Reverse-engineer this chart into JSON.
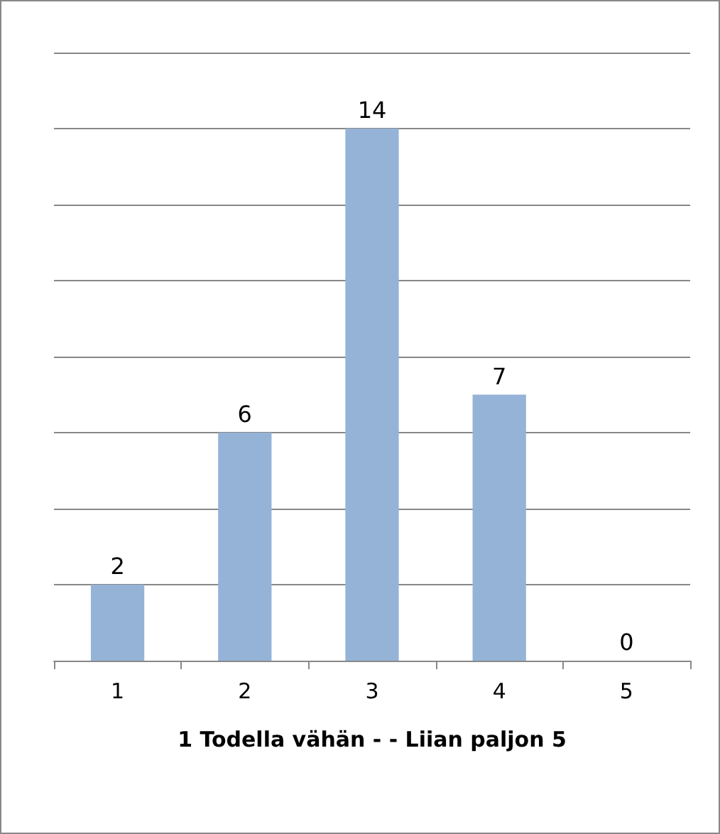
{
  "chart_data": {
    "type": "bar",
    "xlabel": "1 Todella vähän - - Liian paljon 5",
    "categories": [
      "1",
      "2",
      "3",
      "4",
      "5"
    ],
    "values": [
      2,
      6,
      14,
      7,
      0
    ],
    "color": "#95b3d7",
    "ylim": [
      0,
      16
    ],
    "yticks": [
      {
        "value": 0,
        "label": null
      },
      {
        "value": 2,
        "label": null
      },
      {
        "value": 4,
        "label": null
      },
      {
        "value": 6,
        "label": null
      },
      {
        "value": 8,
        "label": null
      },
      {
        "value": 10,
        "label": null
      },
      {
        "value": 12,
        "label": null
      },
      {
        "value": 14,
        "label": null
      },
      {
        "value": 16,
        "label": null
      }
    ],
    "grid": "y",
    "tick_labels": "x",
    "data_labels": true
  }
}
